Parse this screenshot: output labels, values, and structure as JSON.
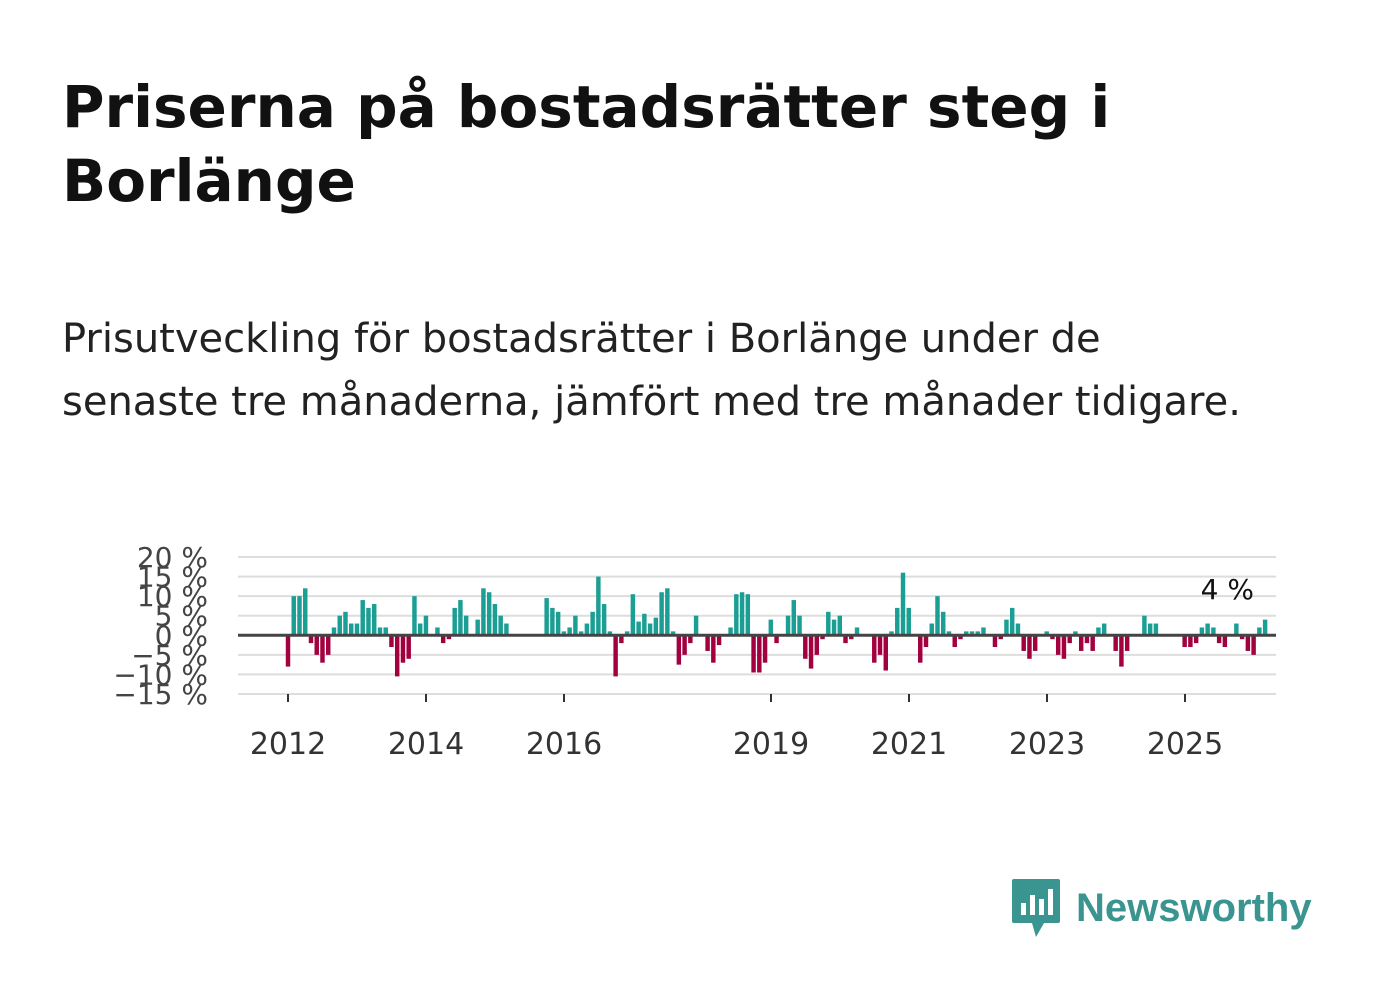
{
  "title": "Priserna på bostadsrätter steg i Borlänge",
  "subtitle": "Prisutveckling för bostadsrätter i Borlänge under de senaste tre månaderna, jämfört med tre månader tidigare.",
  "brand": {
    "name": "Newsworthy",
    "icon": "newsworthy-logo-icon",
    "color": "#3a9490"
  },
  "colors": {
    "positive": "#1b9e93",
    "negative": "#a3003f",
    "grid": "#dddddd",
    "zero": "#444444"
  },
  "chart_data": {
    "type": "bar",
    "title": "",
    "xlabel": "",
    "ylabel": "",
    "ylim": [
      -15,
      20
    ],
    "y_ticks": [
      -15,
      -10,
      -5,
      0,
      5,
      10,
      15,
      20
    ],
    "y_tick_labels": [
      "−15 %",
      "−10 %",
      "−5 %",
      "0 %",
      "5 %",
      "10 %",
      "15 %",
      "20 %"
    ],
    "x_ticks": [
      2012,
      2014,
      2016,
      2019,
      2021,
      2023,
      2025
    ],
    "x_tick_labels": [
      "2012",
      "2014",
      "2016",
      "2019",
      "2021",
      "2023",
      "2025"
    ],
    "x_start": 2012.0,
    "x_step": 0.0833,
    "last_label": "4 %",
    "values": [
      -8,
      10,
      10,
      12,
      -2,
      -5,
      -7,
      -5,
      2,
      5,
      6,
      3,
      3,
      9,
      7,
      8,
      2,
      2,
      -3,
      -10.5,
      -7,
      -6,
      10,
      3,
      5,
      0,
      2,
      -2,
      -1,
      7,
      9,
      5,
      0,
      4,
      12,
      11,
      8,
      5,
      3,
      0,
      0,
      0,
      0,
      0,
      0,
      9.5,
      7,
      6,
      1,
      2,
      5,
      1,
      3,
      6,
      15,
      8,
      1,
      -10.5,
      -2,
      1,
      10.5,
      3.5,
      5.5,
      3,
      4.5,
      11,
      12,
      1,
      -7.5,
      -5,
      -2,
      5,
      0,
      -4,
      -7,
      -2.5,
      0,
      2,
      10.5,
      11,
      10.5,
      -9.5,
      -9.5,
      -7,
      4,
      -2,
      0,
      5,
      9,
      5,
      -6,
      -8.5,
      -5,
      -1,
      6,
      4,
      5,
      -2,
      -1,
      2,
      0,
      0,
      -7,
      -5,
      -9,
      1,
      7,
      16,
      7,
      0,
      -7,
      -3,
      3,
      10,
      6,
      1,
      -3,
      -1,
      1,
      1,
      1,
      2,
      0,
      -3,
      -1,
      4,
      7,
      3,
      -4,
      -6,
      -4,
      0,
      1,
      -1,
      -5,
      -6,
      -2,
      1,
      -4,
      -2,
      -4,
      2,
      3,
      0,
      -4,
      -8,
      -4,
      0,
      0,
      5,
      3,
      3,
      0,
      0,
      0,
      0,
      -3,
      -3,
      -2,
      2,
      3,
      2,
      -2,
      -3,
      0,
      3,
      -1,
      -4,
      -5,
      2,
      4
    ]
  }
}
